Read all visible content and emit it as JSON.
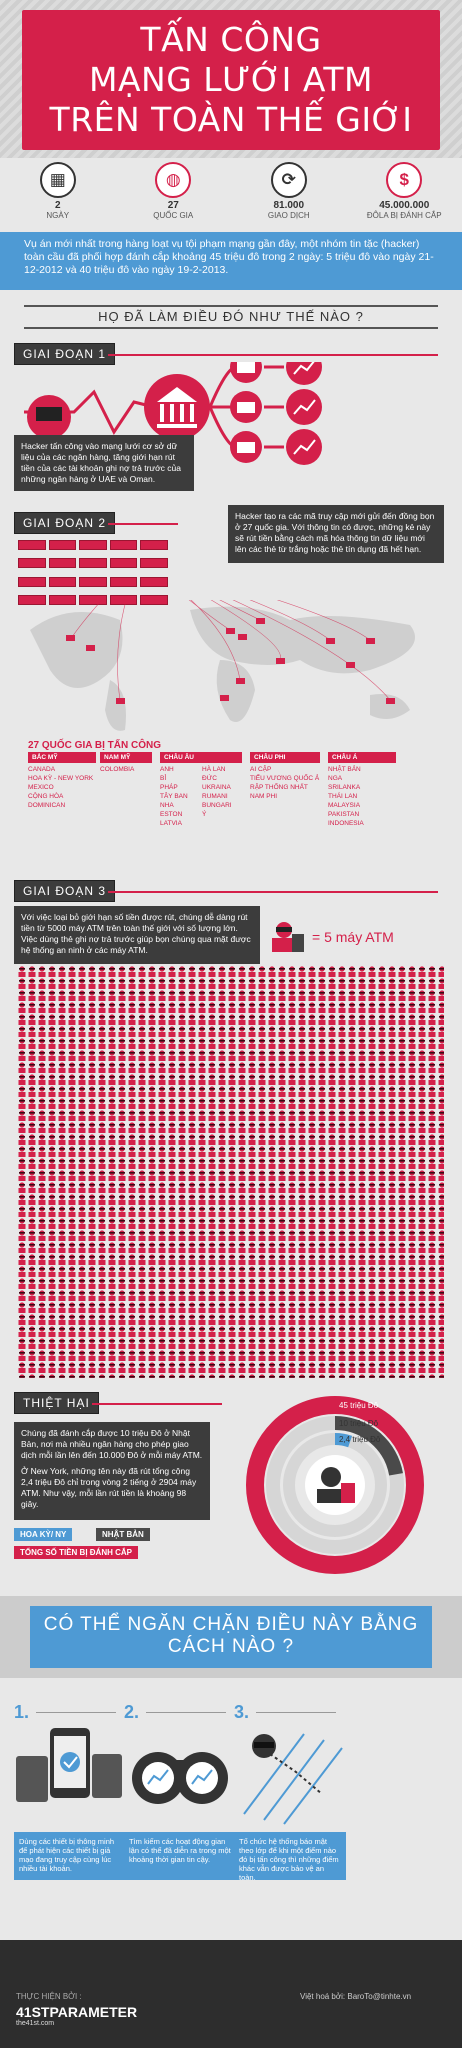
{
  "header": {
    "title_lines": [
      "TẤN CÔNG",
      "MẠNG LƯỚI ATM",
      "TRÊN TOÀN THẾ GIỚI"
    ]
  },
  "stats": [
    {
      "icon": "calendar-icon",
      "value": "2",
      "label": "NGÀY"
    },
    {
      "icon": "globe-icon",
      "value": "27",
      "label": "QUỐC GIA"
    },
    {
      "icon": "refresh-icon",
      "value": "81.000",
      "label": "GIAO DỊCH"
    },
    {
      "icon": "dollar-icon",
      "value": "45.000.000",
      "label": "ĐÔLA BỊ ĐÁNH CẮP"
    }
  ],
  "intro": "Vụ án mới nhất trong hàng loạt vụ tội phạm mạng gần đây, một nhóm tin tặc (hacker) toàn cầu đã phối hợp đánh cắp khoảng 45 triệu đô trong 2 ngày: 5 triệu đô vào ngày 21-12-2012 và 40 triệu đô vào ngày 19-2-2013.",
  "how_heading": "HỌ ĐÃ LÀM ĐIỀU ĐÓ NHƯ THẾ NÀO ?",
  "stage1": {
    "tab": "GIAI ĐOẠN 1",
    "desc": "Hacker tấn công vào mạng lưới cơ sở dữ liệu của các ngân hàng, tăng giới hạn rút tiền của các tài khoản ghi nợ trả trước của những ngân hàng ở UAE và Oman."
  },
  "stage2": {
    "tab": "GIAI ĐOẠN 2",
    "desc": "Hacker tạo ra các mã truy cập mới gửi đến đồng bọn ở 27 quốc gia. Với thông tin có được, những kẻ này sẽ rút tiền bằng cách mã hóa thông tin dữ liệu mới lên các thẻ từ trắng hoặc thẻ tín dụng đã hết hạn.",
    "countries_title": "27 QUỐC GIA BỊ TẤN CÔNG",
    "regions": [
      {
        "name": "BẮC MỸ",
        "list": [
          "CANADA",
          "HOA KỲ - NEW YORK",
          "MEXICO",
          "CỘNG HÒA DOMINICAN"
        ]
      },
      {
        "name": "NAM MỸ",
        "list": [
          "COLOMBIA"
        ]
      },
      {
        "name": "CHÂU ÂU",
        "list": [
          "ANH",
          "BỈ",
          "PHÁP",
          "TÂY BAN NHA",
          "ESTON",
          "LATVIA",
          "HÀ LAN",
          "ĐỨC",
          "UKRAINA",
          "RUMANI",
          "BUNGARI",
          "Ý"
        ]
      },
      {
        "name": "CHÂU PHI",
        "list": [
          "AI CẬP",
          "TIỂU VƯƠNG QUỐC Ả RẬP THỐNG NHẤT",
          "NAM PHI"
        ]
      },
      {
        "name": "CHÂU Á",
        "list": [
          "NHẬT BẢN",
          "NGA",
          "SRILANKA",
          "THÁI LAN",
          "MALAYSIA",
          "PAKISTAN",
          "INDONESIA"
        ]
      }
    ]
  },
  "stage3": {
    "tab": "GIAI ĐOẠN 3",
    "desc": "Với việc loại bỏ giới hạn số tiền được rút, chúng dễ dàng rút tiền từ 5000 máy ATM trên toàn thế giới với số lượng lớn. Việc dùng thẻ ghi nợ trả trước giúp bọn chúng qua mặt được hệ thống an ninh ở các máy ATM.",
    "legend": "= 5 máy ATM"
  },
  "damages": {
    "tab": "THIỆT HẠI",
    "paragraphs": [
      "Chúng đã đánh cắp được 10 triệu Đô ở Nhật Bản, nơi mà nhiều ngân hàng cho phép giao dịch mỗi lần lên đến 10.000 Đô ở mỗi máy ATM.",
      "Ở New York, những tên này đã rút tổng cộng 2,4 triệu Đô chỉ trong vòng 2 tiếng ở 2904 máy ATM. Như vậy, mỗi lần rút tiền là khoảng 98 giây."
    ],
    "legend": {
      "us": "HOA KỲ/ NY",
      "japan": "NHẬT BẢN",
      "total": "TỔNG SỐ TIỀN BỊ ĐÁNH CẮP"
    },
    "rings": [
      {
        "label": "45 triệu Đô",
        "value": 45,
        "color": "#d4204a"
      },
      {
        "label": "10 triệu Đô",
        "value": 10,
        "color": "#4a4a4a"
      },
      {
        "label": "2,4 triệu Đô",
        "value": 2.4,
        "color": "#4e9ad4"
      }
    ]
  },
  "prevention": {
    "title": "CÓ THỂ NGĂN CHẶN ĐIỀU NÀY BẰNG CÁCH NÀO ?",
    "steps": [
      {
        "num": "1.",
        "desc": "Dùng các thiết bị thông minh để phát hiện các thiết bị giả mạo đang truy cập cùng lúc nhiều tài khoản."
      },
      {
        "num": "2.",
        "desc": "Tìm kiếm các hoạt động gian lận có thể đã diễn ra trong một khoảng thời gian tin cậy."
      },
      {
        "num": "3.",
        "desc": "Tổ chức hệ thống báo mật theo lớp để khi một điểm nào đó bị tấn công thì những điểm khác vẫn được bảo vệ an toàn."
      }
    ]
  },
  "footer": {
    "made_by": "THỰC HIỆN BỞI :",
    "logo": "41STPARAMETER",
    "logo_sub": "the41st.com",
    "credit": "Việt hoá bởi: BaroTo@tinhte.vn"
  }
}
